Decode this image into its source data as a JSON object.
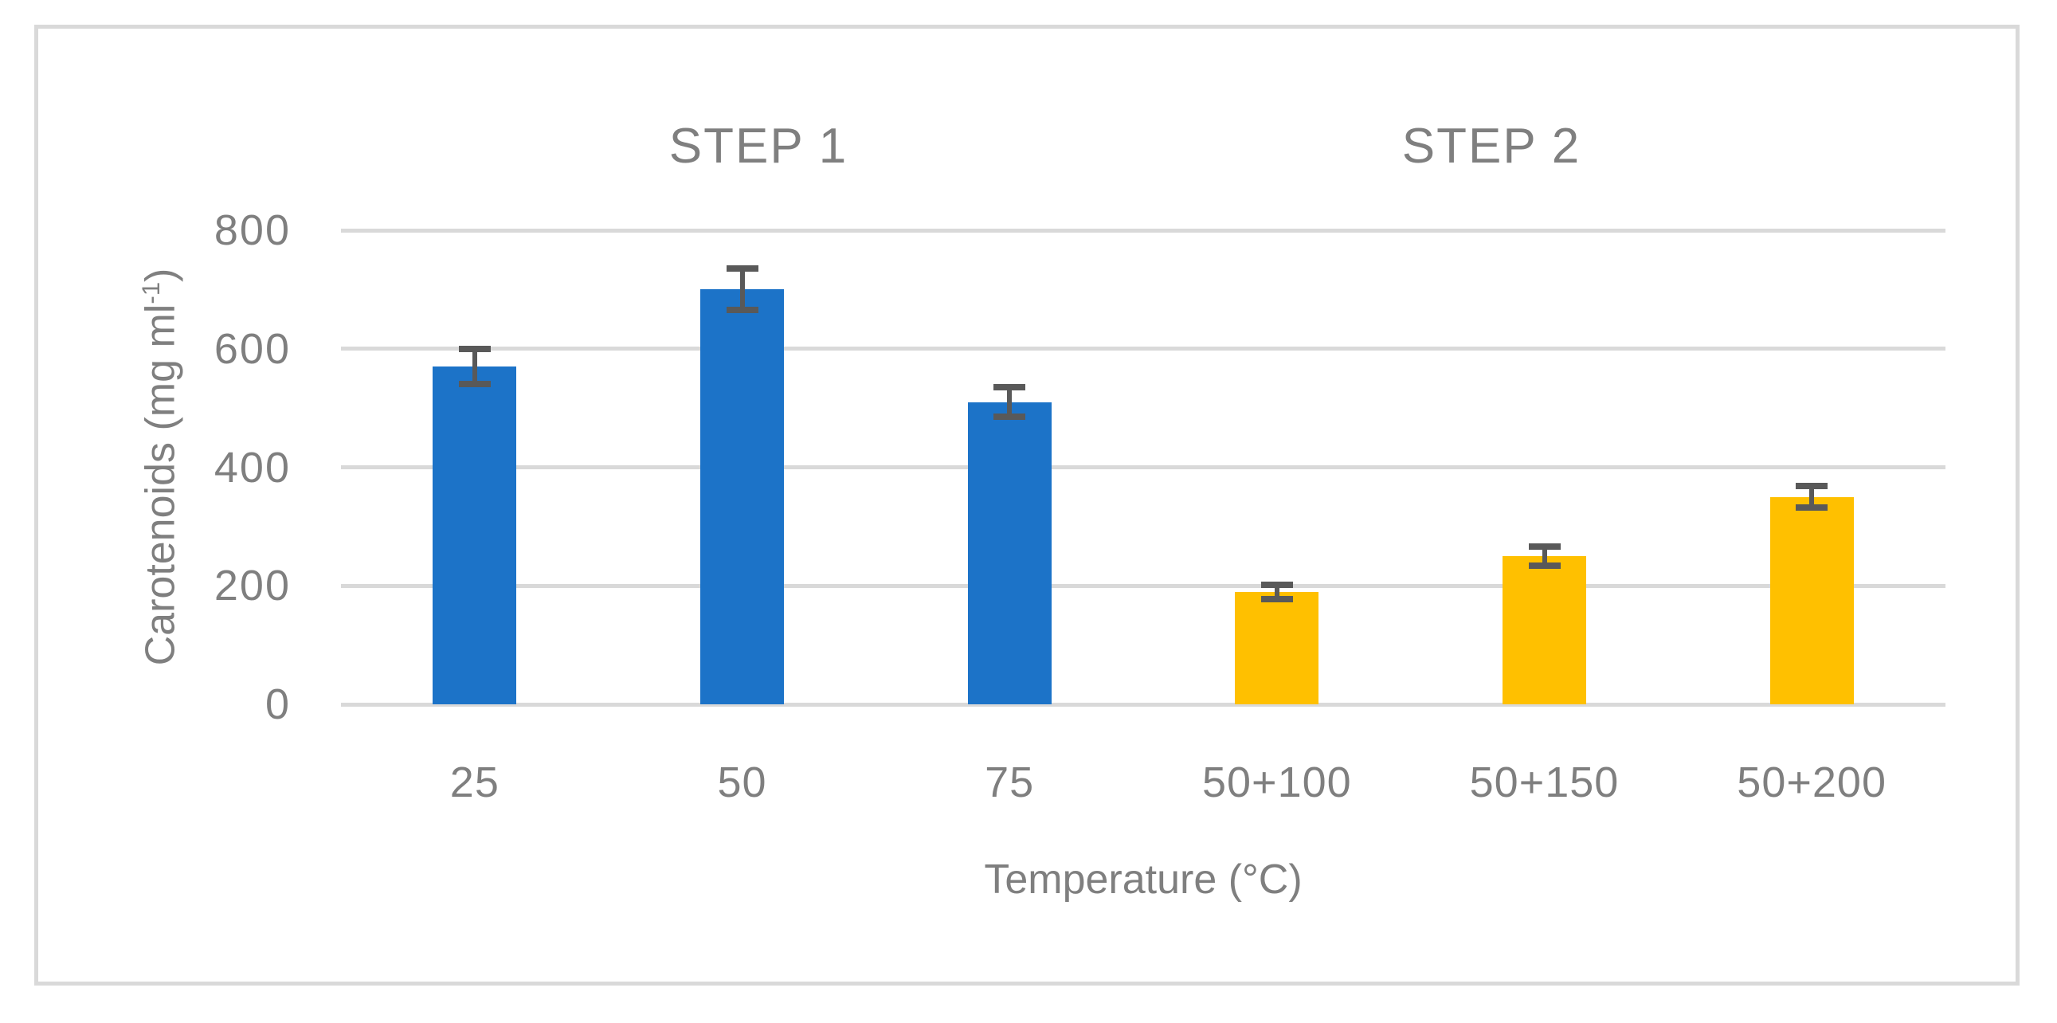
{
  "figure": {
    "border_color": "#D9D9D9",
    "background_color": "#FFFFFF"
  },
  "chart_data": {
    "type": "bar",
    "title": "",
    "group_labels": [
      "STEP 1",
      "STEP 2"
    ],
    "categories": [
      "25",
      "50",
      "75",
      "50+100",
      "50+150",
      "50+200"
    ],
    "bars": [
      {
        "category": "25",
        "group": "STEP 1",
        "value": 570,
        "error": 30,
        "color": "#1C73C8"
      },
      {
        "category": "50",
        "group": "STEP 1",
        "value": 700,
        "error": 35,
        "color": "#1C73C8"
      },
      {
        "category": "75",
        "group": "STEP 1",
        "value": 510,
        "error": 25,
        "color": "#1C73C8"
      },
      {
        "category": "50+100",
        "group": "STEP 2",
        "value": 190,
        "error": 12,
        "color": "#FFC000"
      },
      {
        "category": "50+150",
        "group": "STEP 2",
        "value": 250,
        "error": 16,
        "color": "#FFC000"
      },
      {
        "category": "50+200",
        "group": "STEP 2",
        "value": 350,
        "error": 18,
        "color": "#FFC000"
      }
    ],
    "xlabel": "Temperature (°C)",
    "ylabel": "Carotenoids (mg ml⁻¹)",
    "ylabel_parts": {
      "prefix": "Carotenoids (mg ml",
      "sup": "-1",
      "suffix": ")"
    },
    "yticks": [
      0,
      200,
      400,
      600,
      800
    ],
    "ylim": [
      0,
      800
    ],
    "grid": true,
    "legend": "none",
    "colors": {
      "step1_bar": "#1C73C8",
      "step2_bar": "#FFC000",
      "error_bar": "#595959",
      "gridline": "#D9D9D9",
      "border": "#D9D9D9",
      "text": "#7F7F7F"
    }
  }
}
